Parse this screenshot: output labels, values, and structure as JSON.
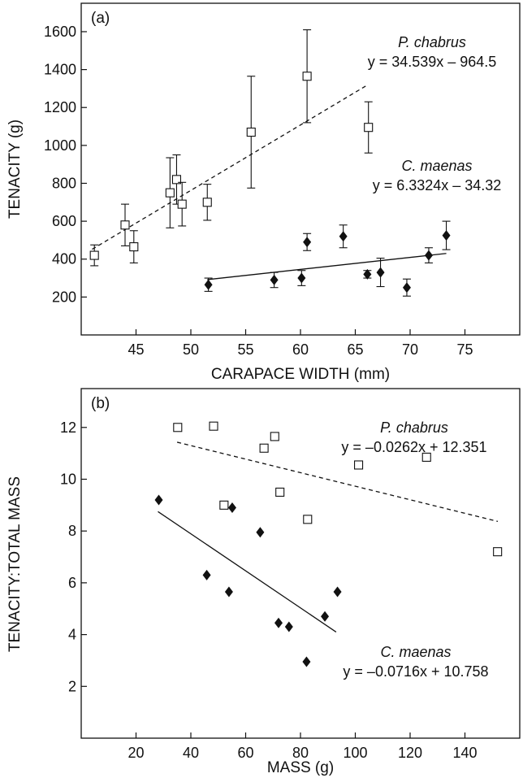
{
  "chart_data": [
    {
      "type": "scatter",
      "panel_label": "(a)",
      "xlabel": "CARAPACE WIDTH (mm)",
      "ylabel": "TENACITY (g)",
      "xlim": [
        40,
        80
      ],
      "ylim": [
        0,
        1750
      ],
      "xticks": [
        45,
        50,
        55,
        60,
        65,
        70,
        75
      ],
      "yticks": [
        200,
        400,
        600,
        800,
        1000,
        1200,
        1400,
        1600
      ],
      "grid": false,
      "series": [
        {
          "name": "P. chabrus",
          "marker": "open-square",
          "equation": "y = 34.539x – 964.5",
          "trend": {
            "style": "dashed",
            "x": [
              41,
              66
            ],
            "y": [
              452,
              1315
            ]
          },
          "points": [
            {
              "x": 41.2,
              "y": 420,
              "err_low": 55,
              "err_high": 55
            },
            {
              "x": 44.0,
              "y": 580,
              "err_low": 110,
              "err_high": 110
            },
            {
              "x": 44.8,
              "y": 465,
              "err_low": 85,
              "err_high": 85
            },
            {
              "x": 48.1,
              "y": 750,
              "err_low": 185,
              "err_high": 185
            },
            {
              "x": 48.7,
              "y": 820,
              "err_low": 130,
              "err_high": 130
            },
            {
              "x": 49.2,
              "y": 690,
              "err_low": 115,
              "err_high": 115
            },
            {
              "x": 51.5,
              "y": 700,
              "err_low": 95,
              "err_high": 95
            },
            {
              "x": 55.5,
              "y": 1070,
              "err_low": 295,
              "err_high": 295
            },
            {
              "x": 60.6,
              "y": 1365,
              "err_low": 245,
              "err_high": 245
            },
            {
              "x": 66.2,
              "y": 1095,
              "err_low": 135,
              "err_high": 135
            }
          ]
        },
        {
          "name": "C. maenas",
          "marker": "filled-diamond",
          "equation": "y = 6.3324x – 34.32",
          "trend": {
            "style": "solid",
            "x": [
              51.5,
              73.3
            ],
            "y": [
              292,
              430
            ]
          },
          "points": [
            {
              "x": 51.6,
              "y": 265,
              "err_low": 35,
              "err_high": 35
            },
            {
              "x": 57.6,
              "y": 290,
              "err_low": 40,
              "err_high": 40
            },
            {
              "x": 60.1,
              "y": 300,
              "err_low": 40,
              "err_high": 40
            },
            {
              "x": 60.6,
              "y": 490,
              "err_low": 45,
              "err_high": 45
            },
            {
              "x": 63.9,
              "y": 520,
              "err_low": 60,
              "err_high": 60
            },
            {
              "x": 66.1,
              "y": 320,
              "err_low": 20,
              "err_high": 20
            },
            {
              "x": 67.3,
              "y": 330,
              "err_low": 75,
              "err_high": 75
            },
            {
              "x": 69.7,
              "y": 250,
              "err_low": 45,
              "err_high": 45
            },
            {
              "x": 71.7,
              "y": 420,
              "err_low": 40,
              "err_high": 40
            },
            {
              "x": 73.3,
              "y": 525,
              "err_low": 75,
              "err_high": 75
            }
          ]
        }
      ]
    },
    {
      "type": "scatter",
      "panel_label": "(b)",
      "xlabel": "MASS (g)",
      "ylabel": "TENACITY:TOTAL MASS",
      "xlim": [
        0,
        160
      ],
      "ylim": [
        0,
        13.5
      ],
      "xticks": [
        20,
        40,
        60,
        80,
        100,
        120,
        140
      ],
      "yticks": [
        2,
        4,
        6,
        8,
        10,
        12
      ],
      "grid": false,
      "series": [
        {
          "name": "P. chabrus",
          "marker": "open-square",
          "equation": "y = –0.0262x + 12.351",
          "trend": {
            "style": "dashed",
            "x": [
              35,
              152
            ],
            "y": [
              11.43,
              8.37
            ]
          },
          "points": [
            {
              "x": 35.2,
              "y": 12.0
            },
            {
              "x": 48.3,
              "y": 12.05
            },
            {
              "x": 52.1,
              "y": 9.0
            },
            {
              "x": 66.7,
              "y": 11.2
            },
            {
              "x": 70.6,
              "y": 11.65
            },
            {
              "x": 72.5,
              "y": 9.5
            },
            {
              "x": 82.6,
              "y": 8.45
            },
            {
              "x": 101.2,
              "y": 10.55
            },
            {
              "x": 126.0,
              "y": 10.85
            },
            {
              "x": 151.9,
              "y": 7.2
            }
          ]
        },
        {
          "name": "C. maenas",
          "marker": "filled-diamond",
          "equation": "y = –0.0716x + 10.758",
          "trend": {
            "style": "solid",
            "x": [
              28,
              93
            ],
            "y": [
              8.75,
              4.1
            ]
          },
          "points": [
            {
              "x": 28.3,
              "y": 9.2
            },
            {
              "x": 45.8,
              "y": 6.3
            },
            {
              "x": 53.9,
              "y": 5.65
            },
            {
              "x": 55.1,
              "y": 8.9
            },
            {
              "x": 65.3,
              "y": 7.95
            },
            {
              "x": 72.0,
              "y": 4.45
            },
            {
              "x": 75.8,
              "y": 4.3
            },
            {
              "x": 82.2,
              "y": 2.95
            },
            {
              "x": 88.9,
              "y": 4.7
            },
            {
              "x": 93.5,
              "y": 5.65
            }
          ]
        }
      ]
    }
  ]
}
